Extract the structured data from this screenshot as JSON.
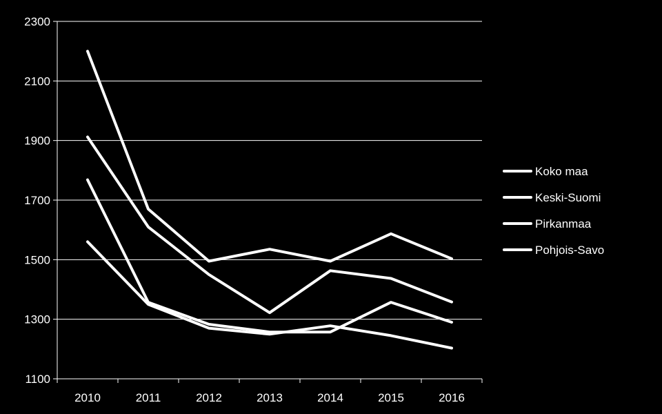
{
  "chart_data": {
    "type": "line",
    "x": [
      "2010",
      "2011",
      "2012",
      "2013",
      "2014",
      "2015",
      "2016"
    ],
    "ylim": [
      1100,
      2300
    ],
    "yticks": [
      1100,
      1300,
      1500,
      1700,
      1900,
      2100,
      2300
    ],
    "grid": true,
    "legend_position": "right",
    "colors": {
      "background": "#000000",
      "line": "#ffffff",
      "grid": "#ffffff",
      "text": "#ffffff"
    },
    "series": [
      {
        "name": "Koko maa",
        "values": [
          1560,
          1350,
          1270,
          1250,
          1278,
          1245,
          1203
        ]
      },
      {
        "name": "Keski-Suomi",
        "values": [
          2200,
          1670,
          1495,
          1535,
          1495,
          1587,
          1503
        ]
      },
      {
        "name": "Pirkanmaa",
        "values": [
          1912,
          1610,
          1450,
          1322,
          1463,
          1437,
          1358
        ]
      },
      {
        "name": "Pohjois-Savo",
        "values": [
          1768,
          1357,
          1283,
          1257,
          1257,
          1357,
          1290
        ]
      }
    ]
  }
}
